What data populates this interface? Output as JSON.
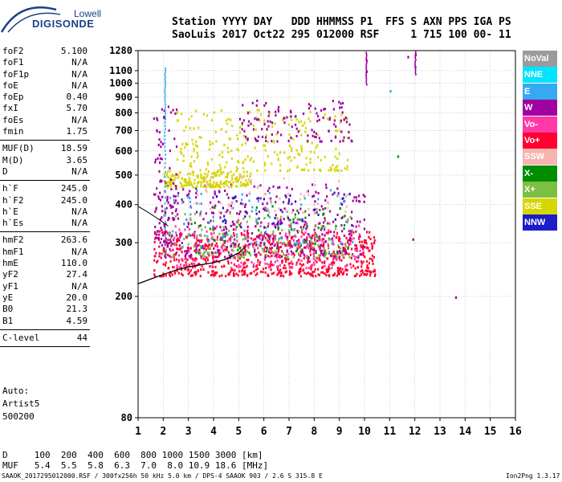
{
  "logo": {
    "line1": "Lowell",
    "line2": "DIGISONDE"
  },
  "header": {
    "line1": "Station YYYY DAY   DDD HHMMSS P1  FFS S AXN PPS IGA PS",
    "line2": "SaoLuis 2017 Oct22 295 012000 RSF     1 715 100 00- 11"
  },
  "params": {
    "g1": [
      {
        "label": "foF2",
        "value": "5.100"
      },
      {
        "label": "foF1",
        "value": "N/A"
      },
      {
        "label": "foF1p",
        "value": "N/A"
      },
      {
        "label": "foE",
        "value": "N/A"
      },
      {
        "label": "foEp",
        "value": "0.40"
      },
      {
        "label": "fxI",
        "value": "5.70"
      },
      {
        "label": "foEs",
        "value": "N/A"
      },
      {
        "label": "fmin",
        "value": "1.75"
      }
    ],
    "g2": [
      {
        "label": "MUF(D)",
        "value": "18.59"
      },
      {
        "label": "M(D)",
        "value": "3.65"
      },
      {
        "label": "D",
        "value": "N/A"
      }
    ],
    "g3": [
      {
        "label": "h`F",
        "value": "245.0"
      },
      {
        "label": "h`F2",
        "value": "245.0"
      },
      {
        "label": "h`E",
        "value": "N/A"
      },
      {
        "label": "h`Es",
        "value": "N/A"
      }
    ],
    "g4": [
      {
        "label": "hmF2",
        "value": "263.6"
      },
      {
        "label": "hmF1",
        "value": "N/A"
      },
      {
        "label": "hmE",
        "value": "110.0"
      },
      {
        "label": "yF2",
        "value": "27.4"
      },
      {
        "label": "yF1",
        "value": "N/A"
      },
      {
        "label": "yE",
        "value": "20.0"
      },
      {
        "label": "B0",
        "value": "21.3"
      },
      {
        "label": "B1",
        "value": "4.59"
      }
    ],
    "g5": [
      {
        "label": "C-level",
        "value": "44"
      }
    ]
  },
  "notes": {
    "line1": "Auto:",
    "line2": "Artist5",
    "line3": "500200"
  },
  "dmuf": {
    "d_row": "D     100  200  400  600  800 1000 1500 3000 [km]",
    "muf_row": "MUF   5.4  5.5  5.8  6.3  7.0  8.0 10.9 18.6 [MHz]"
  },
  "footer": {
    "left": "SAAOK_2017295012000.RSF / 300fx256h 50 kHz 5.0 km / DPS-4 SAAOK 903 / 2.6 S 315.8 E",
    "right": "Ion2Png 1.3.17"
  },
  "legend": [
    {
      "label": "NoVal",
      "color": "#9b9b9b"
    },
    {
      "label": "NNE",
      "color": "#00e4ff"
    },
    {
      "label": "E",
      "color": "#36a9f0"
    },
    {
      "label": "W",
      "color": "#a000a0"
    },
    {
      "label": "Vo-",
      "color": "#ff3aa8"
    },
    {
      "label": "Vo+",
      "color": "#ff0030"
    },
    {
      "label": "SSW",
      "color": "#f7b4b0"
    },
    {
      "label": "X-",
      "color": "#008c00"
    },
    {
      "label": "X+",
      "color": "#7cc043"
    },
    {
      "label": "SSE",
      "color": "#d6d600"
    },
    {
      "label": "NNW",
      "color": "#1c1cc8"
    }
  ],
  "chart_data": {
    "type": "scatter",
    "title": "",
    "xlabel": "",
    "ylabel": "",
    "xlim": [
      1,
      16
    ],
    "ylim": [
      80,
      1280
    ],
    "y_scale": "log",
    "grid": true,
    "x_ticks": [
      1,
      2,
      3,
      4,
      5,
      6,
      7,
      8,
      9,
      10,
      11,
      12,
      13,
      14,
      15,
      16
    ],
    "y_ticks": [
      80,
      200,
      300,
      400,
      500,
      600,
      700,
      800,
      900,
      1000,
      1100,
      1280
    ],
    "trace_curve": [
      [
        1.0,
        220
      ],
      [
        1.5,
        228
      ],
      [
        2.0,
        236
      ],
      [
        2.5,
        244
      ],
      [
        3.0,
        250
      ],
      [
        3.5,
        254
      ],
      [
        4.0,
        258
      ],
      [
        4.5,
        265
      ],
      [
        5.0,
        278
      ],
      [
        5.3,
        292
      ]
    ],
    "clusters": [
      {
        "series": "Vo+",
        "x": [
          1.6,
          10.4
        ],
        "y": [
          235,
          330
        ],
        "n": 700
      },
      {
        "series": "Vo-",
        "x": [
          2.0,
          9.8
        ],
        "y": [
          250,
          360
        ],
        "n": 260
      },
      {
        "series": "W",
        "x": [
          1.6,
          10.0
        ],
        "y": [
          270,
          470
        ],
        "n": 380
      },
      {
        "series": "X+",
        "x": [
          2.0,
          9.5
        ],
        "y": [
          270,
          380
        ],
        "n": 150
      },
      {
        "series": "X-",
        "x": [
          3.0,
          9.5
        ],
        "y": [
          280,
          400
        ],
        "n": 70
      },
      {
        "series": "E",
        "x": [
          2.0,
          9.5
        ],
        "y": [
          300,
          450
        ],
        "n": 80
      },
      {
        "series": "SSE",
        "x": [
          2.0,
          5.5
        ],
        "y": [
          460,
          520
        ],
        "n": 200
      },
      {
        "series": "SSE",
        "x": [
          2.5,
          9.3
        ],
        "y": [
          520,
          830
        ],
        "n": 240
      },
      {
        "series": "W",
        "x": [
          5.0,
          9.5
        ],
        "y": [
          650,
          890
        ],
        "n": 120
      },
      {
        "series": "W",
        "x": [
          1.6,
          2.5
        ],
        "y": [
          300,
          850
        ],
        "n": 90
      },
      {
        "series": "SSW",
        "x": [
          3.0,
          9.5
        ],
        "y": [
          380,
          500
        ],
        "n": 60
      },
      {
        "series": "NNW",
        "x": [
          4.0,
          9.5
        ],
        "y": [
          340,
          450
        ],
        "n": 40
      }
    ],
    "isolated": [
      {
        "series": "Vo+",
        "x": 10.05,
        "y": 1200
      },
      {
        "series": "W",
        "x": 10.05,
        "y": 1100
      },
      {
        "series": "W",
        "x": 12.0,
        "y": 1250
      },
      {
        "series": "W",
        "x": 11.7,
        "y": 1230
      },
      {
        "series": "E",
        "x": 12.0,
        "y": 1140
      },
      {
        "series": "W",
        "x": 13.6,
        "y": 200
      },
      {
        "series": "W",
        "x": 11.9,
        "y": 310
      },
      {
        "series": "X-",
        "x": 11.3,
        "y": 580
      },
      {
        "series": "E",
        "x": 11.0,
        "y": 950
      }
    ]
  }
}
